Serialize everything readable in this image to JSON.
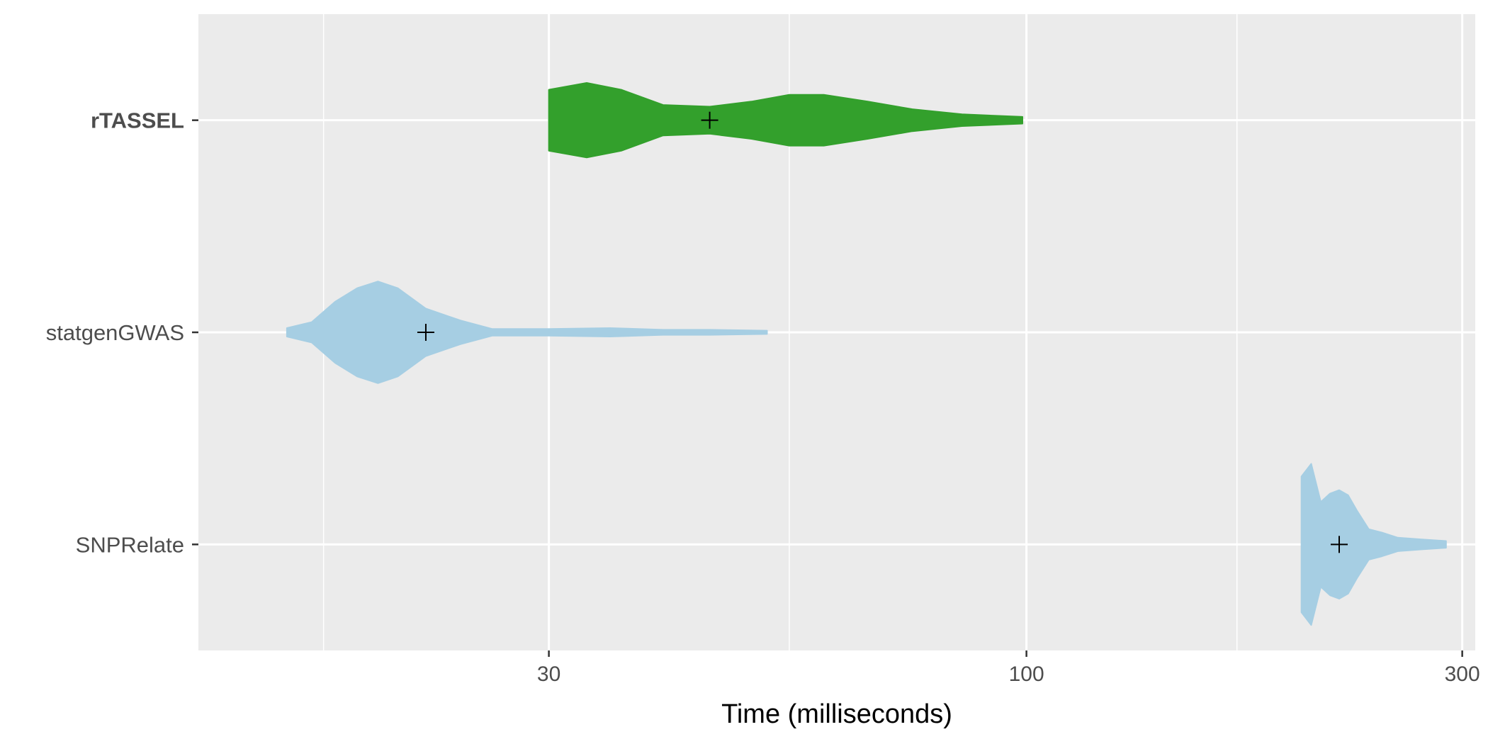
{
  "chart_data": {
    "type": "violin",
    "orientation": "horizontal",
    "title": "",
    "xlabel": "Time (milliseconds)",
    "ylabel": "",
    "x_scale": "log10",
    "xlim": [
      12.4,
      310
    ],
    "x_ticks": [
      30,
      100,
      300
    ],
    "x_tick_labels": [
      "30",
      "100",
      "300"
    ],
    "x_minor_ticks": [
      17,
      55,
      170
    ],
    "grid": true,
    "legend": "none",
    "mean_marker": "plus",
    "categories": [
      "rTASSEL",
      "statgenGWAS",
      "SNPRelate"
    ],
    "highlighted_category": "rTASSEL",
    "series": [
      {
        "category": "rTASSEL",
        "color": "#33a02c",
        "min": 30,
        "max": 99,
        "mean": 45,
        "density": [
          [
            30.0,
            0.36
          ],
          [
            33.0,
            0.44
          ],
          [
            36.0,
            0.36
          ],
          [
            40.0,
            0.18
          ],
          [
            45.0,
            0.16
          ],
          [
            50.0,
            0.22
          ],
          [
            55.0,
            0.3
          ],
          [
            60.0,
            0.3
          ],
          [
            67.0,
            0.22
          ],
          [
            75.0,
            0.13
          ],
          [
            85.0,
            0.07
          ],
          [
            99.0,
            0.04
          ]
        ]
      },
      {
        "category": "statgenGWAS",
        "color": "#a6cee3",
        "min": 15.5,
        "max": 52,
        "mean": 22,
        "density": [
          [
            15.5,
            0.05
          ],
          [
            16.5,
            0.12
          ],
          [
            17.5,
            0.36
          ],
          [
            18.5,
            0.52
          ],
          [
            19.5,
            0.6
          ],
          [
            20.5,
            0.52
          ],
          [
            22.0,
            0.28
          ],
          [
            24.0,
            0.14
          ],
          [
            26.0,
            0.04
          ],
          [
            30.0,
            0.04
          ],
          [
            35.0,
            0.05
          ],
          [
            40.0,
            0.03
          ],
          [
            45.0,
            0.03
          ],
          [
            52.0,
            0.02
          ]
        ]
      },
      {
        "category": "SNPRelate",
        "color": "#a6cee3",
        "min": 200,
        "max": 288,
        "mean": 220,
        "density": [
          [
            200,
            0.8
          ],
          [
            205,
            0.95
          ],
          [
            210,
            0.5
          ],
          [
            215,
            0.6
          ],
          [
            220,
            0.64
          ],
          [
            225,
            0.58
          ],
          [
            230,
            0.4
          ],
          [
            237,
            0.18
          ],
          [
            245,
            0.14
          ],
          [
            255,
            0.08
          ],
          [
            270,
            0.06
          ],
          [
            288,
            0.04
          ]
        ]
      }
    ]
  }
}
